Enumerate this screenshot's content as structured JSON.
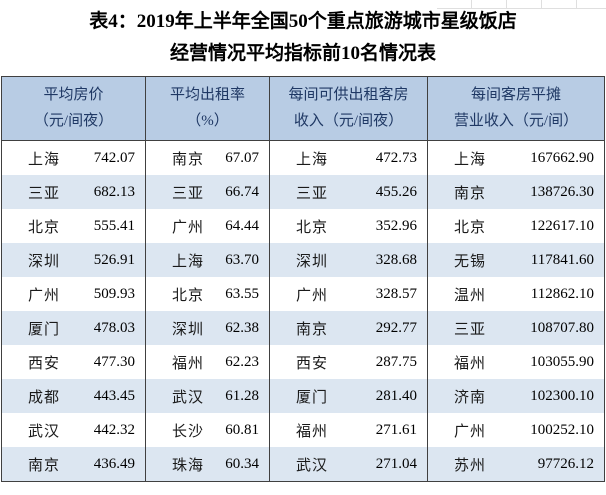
{
  "title": {
    "line1": "表4：2019年上半年全国50个重点旅游城市星级饭店",
    "line2": "经营情况平均指标前10名情况表"
  },
  "colors": {
    "header_bg": "#b8cce4",
    "header_text": "#1f3864",
    "alt_row_bg": "#dce6f1",
    "border": "#404040"
  },
  "table": {
    "groups": [
      {
        "header_line1": "平均房价",
        "header_line2": "（元/间夜）",
        "rows": [
          {
            "city": "上海",
            "value": "742.07"
          },
          {
            "city": "三亚",
            "value": "682.13"
          },
          {
            "city": "北京",
            "value": "555.41"
          },
          {
            "city": "深圳",
            "value": "526.91"
          },
          {
            "city": "广州",
            "value": "509.93"
          },
          {
            "city": "厦门",
            "value": "478.03"
          },
          {
            "city": "西安",
            "value": "477.30"
          },
          {
            "city": "成都",
            "value": "443.45"
          },
          {
            "city": "武汉",
            "value": "442.32"
          },
          {
            "city": "南京",
            "value": "436.49"
          }
        ]
      },
      {
        "header_line1": "平均出租率",
        "header_line2": "（%）",
        "rows": [
          {
            "city": "南京",
            "value": "67.07"
          },
          {
            "city": "三亚",
            "value": "66.74"
          },
          {
            "city": "广州",
            "value": "64.44"
          },
          {
            "city": "上海",
            "value": "63.70"
          },
          {
            "city": "北京",
            "value": "63.55"
          },
          {
            "city": "深圳",
            "value": "62.38"
          },
          {
            "city": "福州",
            "value": "62.23"
          },
          {
            "city": "武汉",
            "value": "61.28"
          },
          {
            "city": "长沙",
            "value": "60.81"
          },
          {
            "city": "珠海",
            "value": "60.34"
          }
        ]
      },
      {
        "header_line1": "每间可供出租客房",
        "header_line2": "收入（元/间夜）",
        "rows": [
          {
            "city": "上海",
            "value": "472.73"
          },
          {
            "city": "三亚",
            "value": "455.26"
          },
          {
            "city": "北京",
            "value": "352.96"
          },
          {
            "city": "深圳",
            "value": "328.68"
          },
          {
            "city": "广州",
            "value": "328.57"
          },
          {
            "city": "南京",
            "value": "292.77"
          },
          {
            "city": "西安",
            "value": "287.75"
          },
          {
            "city": "厦门",
            "value": "281.40"
          },
          {
            "city": "福州",
            "value": "271.61"
          },
          {
            "city": "武汉",
            "value": "271.04"
          }
        ]
      },
      {
        "header_line1": "每间客房平摊",
        "header_line2": "营业收入（元/间）",
        "rows": [
          {
            "city": "上海",
            "value": "167662.90"
          },
          {
            "city": "南京",
            "value": "138726.30"
          },
          {
            "city": "北京",
            "value": "122617.10"
          },
          {
            "city": "无锡",
            "value": "117841.60"
          },
          {
            "city": "温州",
            "value": "112862.10"
          },
          {
            "city": "三亚",
            "value": "108707.80"
          },
          {
            "city": "福州",
            "value": "103055.90"
          },
          {
            "city": "济南",
            "value": "102300.10"
          },
          {
            "city": "广州",
            "value": "100252.10"
          },
          {
            "city": "苏州",
            "value": "97726.12"
          }
        ]
      }
    ]
  },
  "chart_data": {
    "type": "table",
    "title": "表4：2019年上半年全国50个重点旅游城市星级饭店经营情况平均指标前10名情况表",
    "tables": [
      {
        "metric": "平均房价（元/间夜）",
        "rows": [
          [
            "上海",
            742.07
          ],
          [
            "三亚",
            682.13
          ],
          [
            "北京",
            555.41
          ],
          [
            "深圳",
            526.91
          ],
          [
            "广州",
            509.93
          ],
          [
            "厦门",
            478.03
          ],
          [
            "西安",
            477.3
          ],
          [
            "成都",
            443.45
          ],
          [
            "武汉",
            442.32
          ],
          [
            "南京",
            436.49
          ]
        ]
      },
      {
        "metric": "平均出租率（%）",
        "rows": [
          [
            "南京",
            67.07
          ],
          [
            "三亚",
            66.74
          ],
          [
            "广州",
            64.44
          ],
          [
            "上海",
            63.7
          ],
          [
            "北京",
            63.55
          ],
          [
            "深圳",
            62.38
          ],
          [
            "福州",
            62.23
          ],
          [
            "武汉",
            61.28
          ],
          [
            "长沙",
            60.81
          ],
          [
            "珠海",
            60.34
          ]
        ]
      },
      {
        "metric": "每间可供出租客房收入（元/间夜）",
        "rows": [
          [
            "上海",
            472.73
          ],
          [
            "三亚",
            455.26
          ],
          [
            "北京",
            352.96
          ],
          [
            "深圳",
            328.68
          ],
          [
            "广州",
            328.57
          ],
          [
            "南京",
            292.77
          ],
          [
            "西安",
            287.75
          ],
          [
            "厦门",
            281.4
          ],
          [
            "福州",
            271.61
          ],
          [
            "武汉",
            271.04
          ]
        ]
      },
      {
        "metric": "每间客房平摊营业收入（元/间）",
        "rows": [
          [
            "上海",
            167662.9
          ],
          [
            "南京",
            138726.3
          ],
          [
            "北京",
            122617.1
          ],
          [
            "无锡",
            117841.6
          ],
          [
            "温州",
            112862.1
          ],
          [
            "三亚",
            108707.8
          ],
          [
            "福州",
            103055.9
          ],
          [
            "济南",
            102300.1
          ],
          [
            "广州",
            100252.1
          ],
          [
            "苏州",
            97726.12
          ]
        ]
      }
    ]
  }
}
